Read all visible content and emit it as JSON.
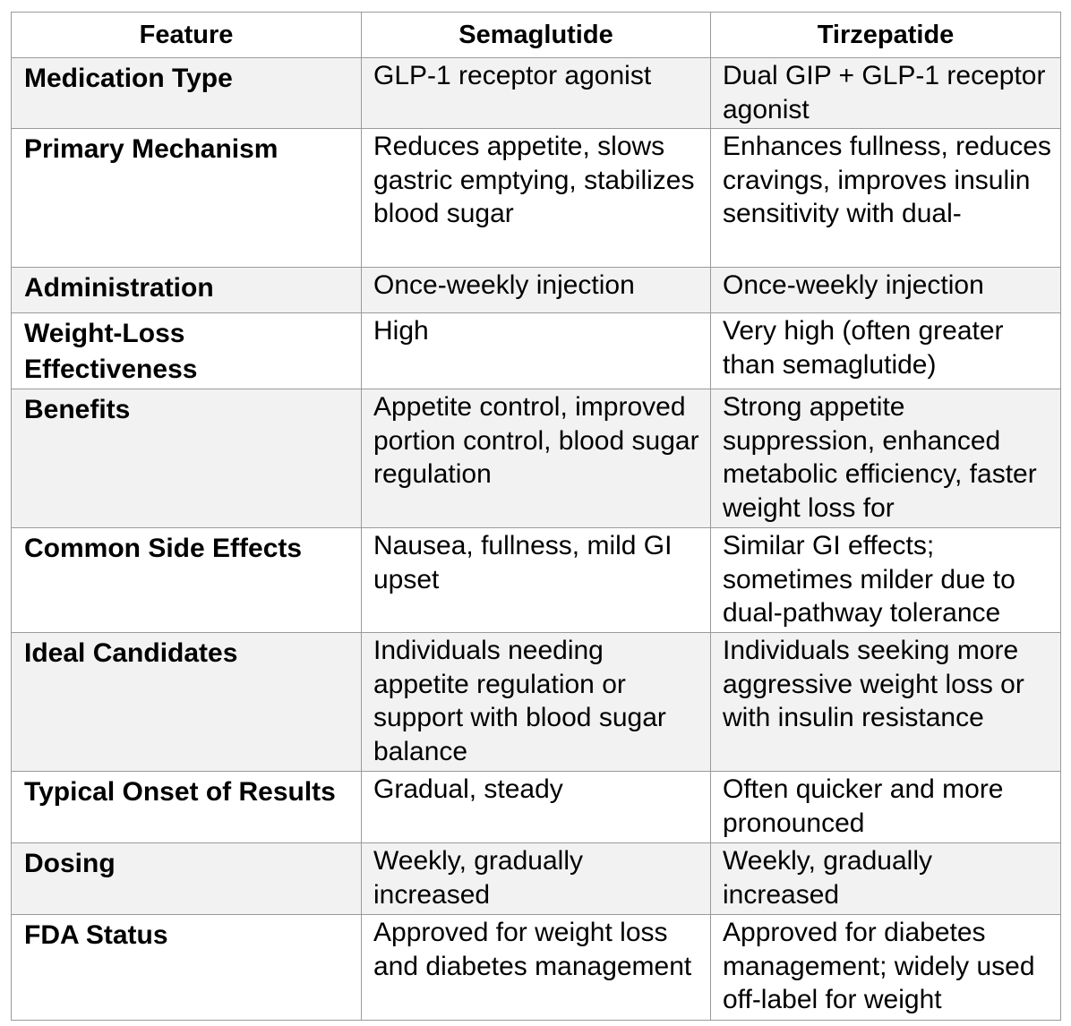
{
  "table": {
    "headers": [
      "Feature",
      "Semaglutide",
      "Tirzepatide"
    ],
    "rows": [
      {
        "feature": "Medication Type",
        "semaglutide": "GLP-1 receptor agonist",
        "tirzepatide": "Dual GIP + GLP-1 receptor agonist"
      },
      {
        "feature": "Primary Mechanism",
        "semaglutide": "Reduces appetite, slows gastric emptying, stabilizes blood sugar",
        "tirzepatide": "Enhances fullness, reduces cravings, improves insulin sensitivity with dual-"
      },
      {
        "feature": "Administration",
        "semaglutide": "Once-weekly injection",
        "tirzepatide": "Once-weekly injection"
      },
      {
        "feature": "Weight-Loss Effectiveness",
        "semaglutide": "High",
        "tirzepatide": "Very high (often greater than semaglutide)"
      },
      {
        "feature": "Benefits",
        "semaglutide": "Appetite control, improved portion control, blood sugar regulation",
        "tirzepatide": "Strong appetite suppression, enhanced metabolic efficiency, faster weight loss for"
      },
      {
        "feature": "Common Side Effects",
        "semaglutide": "Nausea, fullness, mild GI upset",
        "tirzepatide": "Similar GI effects; sometimes milder due to dual-pathway tolerance"
      },
      {
        "feature": "Ideal Candidates",
        "semaglutide": "Individuals needing appetite regulation or support with blood sugar balance",
        "tirzepatide": "Individuals seeking more aggressive weight loss or with insulin resistance"
      },
      {
        "feature": "Typical Onset of Results",
        "semaglutide": "Gradual, steady",
        "tirzepatide": "Often quicker and more pronounced"
      },
      {
        "feature": "Dosing",
        "semaglutide": "Weekly, gradually increased",
        "tirzepatide": "Weekly, gradually increased"
      },
      {
        "feature": "FDA Status",
        "semaglutide": "Approved for weight loss and diabetes management",
        "tirzepatide": "Approved for diabetes management; widely used off-label for weight"
      }
    ]
  }
}
